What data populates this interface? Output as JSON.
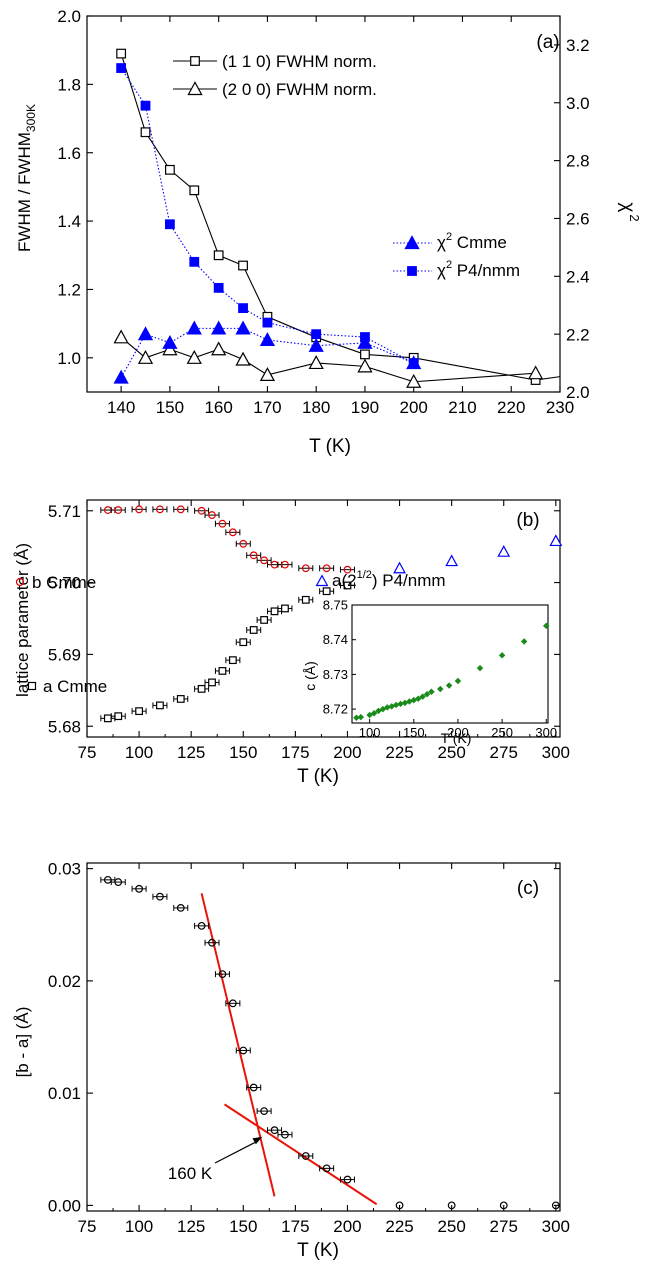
{
  "colors": {
    "black": "#000000",
    "blue": "#0000ff",
    "red": "#e00000",
    "green": "#1a8a1a",
    "darkred": "#b01010"
  },
  "chart_data": [
    {
      "panel": "(a)",
      "type": "line",
      "xlabel": "T (K)",
      "ylabel": "FWHM / FWHM",
      "ylabel_sub": "300K",
      "y2label": "χ",
      "y2label_sup": "2",
      "xlim": [
        133,
        230
      ],
      "ylim": [
        0.9,
        2.0
      ],
      "y2lim": [
        2.0,
        3.3
      ],
      "xticks": [
        140,
        150,
        160,
        170,
        180,
        190,
        200,
        210,
        220,
        230
      ],
      "yticks": [
        1.0,
        1.2,
        1.4,
        1.6,
        1.8,
        2.0
      ],
      "yticklabels": [
        "1.0",
        "1.2",
        "1.4",
        "1.6",
        "1.8",
        "2.0"
      ],
      "y2ticks": [
        2.0,
        2.2,
        2.4,
        2.6,
        2.8,
        3.0,
        3.2
      ],
      "y2ticklabels": [
        "2.0",
        "2.2",
        "2.4",
        "2.6",
        "2.8",
        "3.0",
        "3.2"
      ],
      "legend_top": [
        "(1 1 0) FWHM norm.",
        "(2 0 0) FWHM norm."
      ],
      "legend_bottom_prefix": "χ",
      "legend_bottom_sup": "2",
      "legend_bottom": [
        " Cmme",
        " P4/nmm"
      ],
      "series": [
        {
          "name": "(1 1 0) FWHM norm.",
          "axis": "left",
          "marker": "open-square",
          "color": "#000000",
          "line": "solid",
          "x": [
            140,
            145,
            150,
            155,
            160,
            165,
            170,
            180,
            190,
            200,
            225,
            230
          ],
          "y": [
            1.89,
            1.66,
            1.55,
            1.49,
            1.3,
            1.27,
            1.12,
            1.06,
            1.01,
            1.0,
            0.935,
            0.945
          ]
        },
        {
          "name": "(2 0 0) FWHM norm.",
          "axis": "left",
          "marker": "open-triangle",
          "color": "#000000",
          "line": "solid",
          "x": [
            140,
            145,
            150,
            155,
            160,
            165,
            170,
            180,
            190,
            200,
            225
          ],
          "y": [
            1.06,
            1.0,
            1.025,
            1.0,
            1.025,
            0.995,
            0.95,
            0.985,
            0.975,
            0.93,
            0.955
          ]
        },
        {
          "name": "χ2 Cmme",
          "axis": "right",
          "marker": "filled-triangle",
          "color": "#0000ff",
          "line": "dotted",
          "x": [
            140,
            145,
            150,
            155,
            160,
            165,
            170,
            180,
            190,
            200
          ],
          "y": [
            2.05,
            2.2,
            2.17,
            2.22,
            2.22,
            2.22,
            2.18,
            2.16,
            2.17,
            2.1
          ]
        },
        {
          "name": "χ2 P4/nmm",
          "axis": "right",
          "marker": "filled-square",
          "color": "#0000ff",
          "line": "dotted",
          "x": [
            140,
            145,
            150,
            155,
            160,
            165,
            170,
            180,
            190,
            200
          ],
          "y": [
            3.12,
            2.99,
            2.58,
            2.45,
            2.36,
            2.29,
            2.24,
            2.2,
            2.19,
            2.1
          ]
        }
      ]
    },
    {
      "panel": "(b)",
      "type": "scatter",
      "xlabel": "T (K)",
      "ylabel": "lattice parameter (Å)",
      "xlim": [
        75,
        302
      ],
      "ylim": [
        5.6785,
        5.7115
      ],
      "xticks": [
        75,
        100,
        125,
        150,
        175,
        200,
        225,
        250,
        275,
        300
      ],
      "yticks": [
        5.68,
        5.69,
        5.7,
        5.71
      ],
      "yticklabels": [
        "5.68",
        "5.69",
        "5.70",
        "5.71"
      ],
      "labels": {
        "b": "b Cmme",
        "a": "a Cmme",
        "p4_prefix": "a(2",
        "p4_sup": "1/2",
        "p4_suffix": ")  P4/nmm"
      },
      "series": [
        {
          "name": "b Cmme",
          "marker": "open-circle",
          "color": "#e00000",
          "x": [
            85,
            90,
            100,
            110,
            120,
            130,
            135,
            140,
            145,
            150,
            155,
            160,
            165,
            170,
            180,
            190,
            200
          ],
          "y": [
            5.7101,
            5.7101,
            5.7102,
            5.7102,
            5.7102,
            5.71,
            5.7094,
            5.7082,
            5.707,
            5.7054,
            5.7038,
            5.7031,
            5.7025,
            5.7025,
            5.702,
            5.702,
            5.7018
          ]
        },
        {
          "name": "a Cmme",
          "marker": "open-square",
          "color": "#000000",
          "x": [
            85,
            90,
            100,
            110,
            120,
            130,
            135,
            140,
            145,
            150,
            155,
            160,
            165,
            170,
            180,
            190,
            200
          ],
          "y": [
            5.6811,
            5.6814,
            5.6821,
            5.6829,
            5.6838,
            5.6852,
            5.6861,
            5.6877,
            5.6892,
            5.6917,
            5.6934,
            5.6948,
            5.696,
            5.6964,
            5.6976,
            5.6988,
            5.6996
          ]
        },
        {
          "name": "a(21/2) P4/nmm",
          "marker": "open-triangle",
          "color": "#0000ff",
          "x": [
            225,
            250,
            275,
            300
          ],
          "y": [
            5.702,
            5.703,
            5.7043,
            5.7058
          ]
        }
      ],
      "inset": {
        "type": "scatter",
        "xlabel": "T (K)",
        "ylabel": "c (Å)",
        "xlim": [
          80,
          302
        ],
        "ylim": [
          8.716,
          8.75
        ],
        "xticks": [
          100,
          150,
          200,
          250,
          300
        ],
        "yticks": [
          8.72,
          8.73,
          8.74,
          8.75
        ],
        "yticklabels": [
          "8.72",
          "8.73",
          "8.74",
          "8.75"
        ],
        "series": [
          {
            "name": "c",
            "marker": "filled-diamond",
            "color": "#1a8a1a",
            "x": [
              85,
              90,
              100,
              105,
              110,
              115,
              120,
              125,
              130,
              135,
              140,
              145,
              150,
              155,
              160,
              165,
              170,
              180,
              190,
              200,
              225,
              250,
              275,
              300
            ],
            "y": [
              8.7175,
              8.7177,
              8.7183,
              8.7188,
              8.7195,
              8.72,
              8.7205,
              8.7208,
              8.7212,
              8.7215,
              8.7218,
              8.7222,
              8.7226,
              8.723,
              8.7236,
              8.7243,
              8.725,
              8.7258,
              8.7268,
              8.7281,
              8.7318,
              8.7355,
              8.7395,
              8.744
            ]
          }
        ]
      }
    },
    {
      "panel": "(c)",
      "type": "scatter",
      "xlabel": "T (K)",
      "ylabel": "[b - a] (Å)",
      "xlim": [
        75,
        302
      ],
      "ylim": [
        -0.0005,
        0.0305
      ],
      "xticks": [
        75,
        100,
        125,
        150,
        175,
        200,
        225,
        250,
        275,
        300
      ],
      "yticks": [
        0.0,
        0.01,
        0.02,
        0.03
      ],
      "yticklabels": [
        "0.00",
        "0.01",
        "0.02",
        "0.03"
      ],
      "annotation": "160 K",
      "series": [
        {
          "name": "b - a",
          "marker": "open-circle",
          "color": "#000000",
          "x": [
            85,
            90,
            100,
            110,
            120,
            130,
            135,
            140,
            145,
            150,
            155,
            160,
            165,
            170,
            180,
            190,
            200,
            225,
            250,
            275,
            300
          ],
          "y": [
            0.029,
            0.0288,
            0.0282,
            0.0275,
            0.0265,
            0.0249,
            0.0234,
            0.0206,
            0.018,
            0.0138,
            0.0105,
            0.0084,
            0.0067,
            0.0063,
            0.0044,
            0.0033,
            0.0023,
            0.0,
            0.0,
            0.0,
            0.0
          ]
        }
      ],
      "fit_lines": [
        {
          "x": [
            130,
            165
          ],
          "y": [
            0.0278,
            0.0008
          ]
        },
        {
          "x": [
            141,
            214
          ],
          "y": [
            0.009,
            0.0001
          ]
        }
      ]
    }
  ]
}
